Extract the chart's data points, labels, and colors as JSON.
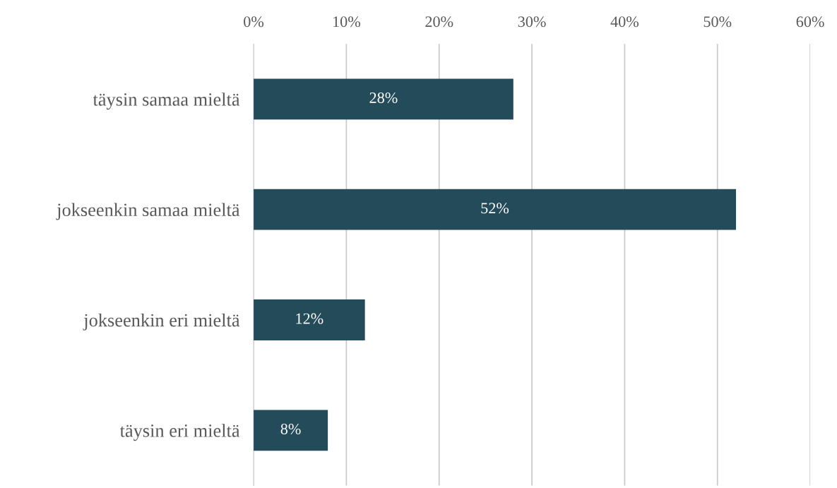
{
  "chart_data": {
    "type": "bar",
    "orientation": "horizontal",
    "categories": [
      "täysin samaa mieltä",
      "jokseenkin samaa mieltä",
      "jokseenkin eri mieltä",
      "täysin eri mieltä"
    ],
    "values": [
      28,
      52,
      12,
      8
    ],
    "value_labels": [
      "28%",
      "52%",
      "12%",
      "8%"
    ],
    "color": "#234b5a",
    "xlim": [
      0,
      60
    ],
    "xticks": [
      {
        "value": 0,
        "label": "0%"
      },
      {
        "value": 10,
        "label": "10%"
      },
      {
        "value": 20,
        "label": "20%"
      },
      {
        "value": 30,
        "label": "30%"
      },
      {
        "value": 40,
        "label": "40%"
      },
      {
        "value": 50,
        "label": "50%"
      },
      {
        "value": 60,
        "label": "60%"
      }
    ],
    "grid": "x"
  }
}
